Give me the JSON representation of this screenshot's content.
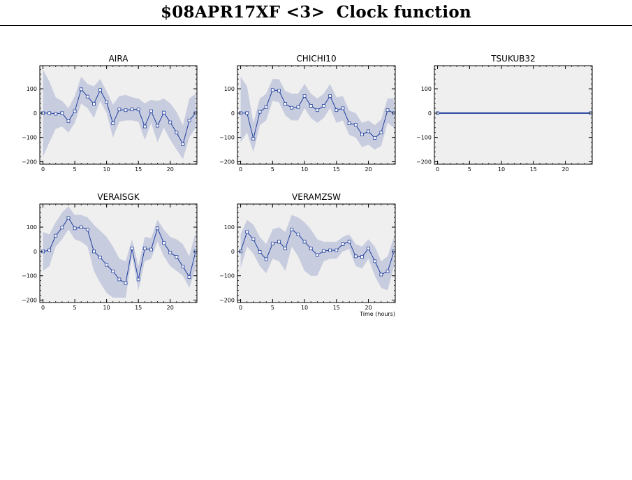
{
  "page": {
    "title": "$08APR17XF <3>  Clock function"
  },
  "chart_data": [
    {
      "type": "line",
      "title": "AIRA",
      "xlabel": "",
      "ylabel": "",
      "xlim": [
        -0.5,
        24.2
      ],
      "ylim": [
        -210,
        195
      ],
      "xticks": [
        0,
        5,
        10,
        15,
        20
      ],
      "yticks": [
        -200,
        -100,
        0,
        100
      ],
      "grid": false,
      "band_color": "#c8ccdf",
      "line_color": "#1f3f9e",
      "x": [
        0,
        1,
        2,
        3,
        4,
        5,
        6,
        7,
        8,
        9,
        10,
        11,
        12,
        13,
        14,
        15,
        16,
        17,
        18,
        19,
        20,
        21,
        22,
        23,
        24
      ],
      "series": [
        {
          "values": [
            0,
            0,
            -3,
            0,
            -33,
            8,
            98,
            68,
            38,
            95,
            45,
            -42,
            15,
            12,
            15,
            15,
            -55,
            8,
            -52,
            2,
            -38,
            -80,
            -128,
            -30,
            0
          ],
          "band_upper": [
            180,
            130,
            65,
            50,
            20,
            70,
            150,
            120,
            110,
            140,
            90,
            35,
            70,
            75,
            65,
            60,
            40,
            55,
            50,
            60,
            40,
            5,
            -50,
            60,
            80
          ],
          "band_lower": [
            -180,
            -120,
            -65,
            -55,
            -80,
            -40,
            40,
            20,
            -20,
            50,
            0,
            -100,
            -35,
            -30,
            -30,
            -35,
            -110,
            -40,
            -120,
            -60,
            -110,
            -150,
            -190,
            -100,
            -60
          ]
        }
      ]
    },
    {
      "type": "line",
      "title": "CHICHI10",
      "xlabel": "",
      "ylabel": "",
      "xlim": [
        -0.5,
        24.2
      ],
      "ylim": [
        -210,
        195
      ],
      "xticks": [
        0,
        5,
        10,
        15,
        20
      ],
      "yticks": [
        -200,
        -100,
        0,
        100
      ],
      "grid": false,
      "band_color": "#c8ccdf",
      "line_color": "#1f3f9e",
      "x": [
        0,
        1,
        2,
        3,
        4,
        5,
        6,
        7,
        8,
        9,
        10,
        11,
        12,
        13,
        14,
        15,
        16,
        17,
        18,
        19,
        20,
        21,
        22,
        23,
        24
      ],
      "series": [
        {
          "values": [
            0,
            0,
            -105,
            5,
            25,
            95,
            92,
            38,
            22,
            25,
            70,
            30,
            12,
            30,
            70,
            12,
            20,
            -42,
            -48,
            -88,
            -75,
            -102,
            -80,
            12,
            0
          ],
          "band_upper": [
            150,
            110,
            -40,
            60,
            80,
            140,
            140,
            90,
            80,
            80,
            120,
            80,
            60,
            80,
            120,
            65,
            70,
            10,
            0,
            -40,
            -30,
            -50,
            -25,
            60,
            60
          ],
          "band_lower": [
            -120,
            -80,
            -160,
            -50,
            -30,
            50,
            45,
            -10,
            -30,
            -30,
            20,
            -20,
            -40,
            -20,
            20,
            -40,
            -30,
            -90,
            -100,
            -140,
            -130,
            -150,
            -135,
            -40,
            -60
          ]
        }
      ]
    },
    {
      "type": "line",
      "title": "TSUKUB32",
      "xlabel": "",
      "ylabel": "",
      "xlim": [
        -0.5,
        24.2
      ],
      "ylim": [
        -210,
        195
      ],
      "xticks": [
        0,
        5,
        10,
        15,
        20
      ],
      "yticks": [
        -200,
        -100,
        0,
        100
      ],
      "grid": false,
      "band_color": "#c8ccdf",
      "line_color": "#1f3f9e",
      "x": [
        0,
        24
      ],
      "series": [
        {
          "values": [
            0,
            0
          ],
          "band_upper": [
            0,
            0
          ],
          "band_lower": [
            0,
            0
          ]
        }
      ]
    },
    {
      "type": "line",
      "title": "VERAISGK",
      "xlabel": "",
      "ylabel": "",
      "xlim": [
        -0.5,
        24.2
      ],
      "ylim": [
        -210,
        195
      ],
      "xticks": [
        0,
        5,
        10,
        15,
        20
      ],
      "yticks": [
        -200,
        -100,
        0,
        100
      ],
      "grid": false,
      "band_color": "#c8ccdf",
      "line_color": "#1f3f9e",
      "x": [
        0,
        1,
        2,
        3,
        4,
        5,
        6,
        7,
        8,
        9,
        10,
        11,
        12,
        13,
        14,
        15,
        16,
        17,
        18,
        19,
        20,
        21,
        22,
        23,
        24
      ],
      "series": [
        {
          "values": [
            0,
            5,
            65,
            98,
            138,
            95,
            100,
            90,
            0,
            -25,
            -55,
            -82,
            -115,
            -130,
            12,
            -115,
            12,
            8,
            95,
            35,
            -5,
            -22,
            -62,
            -105,
            0
          ],
          "band_upper": [
            80,
            70,
            120,
            160,
            185,
            150,
            150,
            140,
            110,
            85,
            60,
            20,
            -30,
            -40,
            50,
            -60,
            60,
            55,
            130,
            90,
            60,
            50,
            30,
            -20,
            80
          ],
          "band_lower": [
            -80,
            -60,
            20,
            50,
            90,
            50,
            40,
            20,
            -80,
            -130,
            -170,
            -190,
            -190,
            -190,
            -20,
            -160,
            -40,
            -30,
            40,
            -20,
            -60,
            -80,
            -100,
            -150,
            -70
          ]
        }
      ]
    },
    {
      "type": "line",
      "title": "VERAMZSW",
      "xlabel": "Time (hours)",
      "ylabel": "",
      "xlim": [
        -0.5,
        24.2
      ],
      "ylim": [
        -210,
        195
      ],
      "xticks": [
        0,
        5,
        10,
        15,
        20
      ],
      "yticks": [
        -200,
        -100,
        0,
        100
      ],
      "grid": false,
      "band_color": "#c8ccdf",
      "line_color": "#1f3f9e",
      "x": [
        0,
        1,
        2,
        3,
        4,
        5,
        6,
        7,
        8,
        9,
        10,
        11,
        12,
        13,
        14,
        15,
        16,
        17,
        18,
        19,
        20,
        21,
        22,
        23,
        24
      ],
      "series": [
        {
          "values": [
            0,
            80,
            50,
            -2,
            -32,
            32,
            40,
            12,
            90,
            70,
            40,
            12,
            -15,
            2,
            5,
            5,
            30,
            40,
            -20,
            -22,
            12,
            -40,
            -95,
            -82,
            0
          ],
          "band_upper": [
            70,
            130,
            110,
            60,
            30,
            90,
            100,
            80,
            150,
            140,
            120,
            90,
            50,
            40,
            40,
            40,
            60,
            70,
            30,
            20,
            50,
            20,
            -40,
            -20,
            60
          ],
          "band_lower": [
            -70,
            20,
            -10,
            -60,
            -90,
            -30,
            -40,
            -80,
            20,
            -20,
            -80,
            -100,
            -100,
            -40,
            -30,
            -30,
            0,
            10,
            -60,
            -70,
            -30,
            -100,
            -150,
            -160,
            -60
          ]
        }
      ]
    }
  ]
}
